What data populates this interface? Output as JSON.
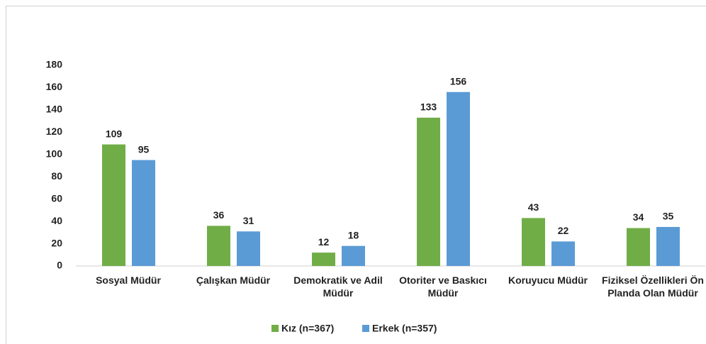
{
  "chart_data": {
    "type": "bar",
    "categories": [
      "Sosyal Müdür",
      "Çalışkan Müdür",
      "Demokratik ve Adil Müdür",
      "Otoriter ve Baskıcı Müdür",
      "Koruyucu Müdür",
      "Fiziksel Özellikleri Ön Planda Olan Müdür"
    ],
    "series": [
      {
        "name": "Kız (n=367)",
        "color": "#70ad47",
        "values": [
          109,
          36,
          12,
          133,
          43,
          34
        ]
      },
      {
        "name": "Erkek (n=357)",
        "color": "#5b9bd5",
        "values": [
          95,
          31,
          18,
          156,
          22,
          35
        ]
      }
    ],
    "ylim": [
      0,
      180
    ],
    "yticks": [
      0,
      20,
      40,
      60,
      80,
      100,
      120,
      140,
      160,
      180
    ],
    "grid": false,
    "legend": "bottom"
  }
}
